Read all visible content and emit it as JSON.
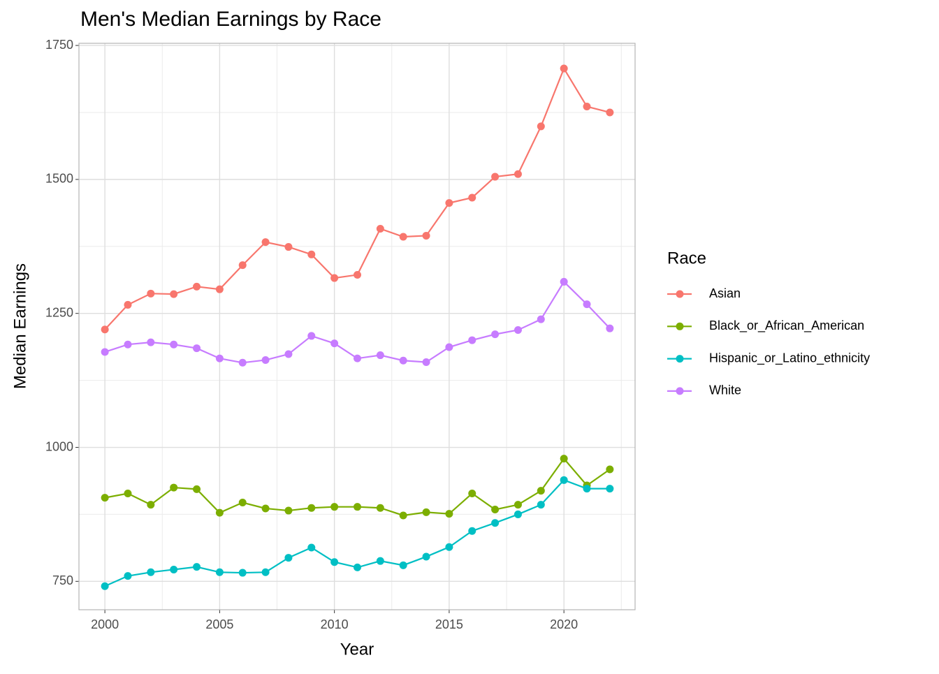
{
  "chart_data": {
    "type": "line",
    "title": "Men's Median Earnings by Race",
    "x_label": "Year",
    "y_label": "Median Earnings",
    "legend_title": "Race",
    "legend_position": "right",
    "x": [
      2000,
      2001,
      2002,
      2003,
      2004,
      2005,
      2006,
      2007,
      2008,
      2009,
      2010,
      2011,
      2012,
      2013,
      2014,
      2015,
      2016,
      2017,
      2018,
      2019,
      2020,
      2021,
      2022
    ],
    "xlim": [
      1998.87,
      2023.1
    ],
    "xticks": [
      2000,
      2005,
      2010,
      2015,
      2020
    ],
    "x_minor_ticks": [
      2002.5,
      2007.5,
      2012.5,
      2017.5,
      2022.5
    ],
    "ylim": [
      697,
      1754
    ],
    "yticks": [
      750,
      1000,
      1250,
      1500,
      1750
    ],
    "y_minor_ticks": [
      875,
      1125,
      1375,
      1625
    ],
    "grid": true,
    "series": [
      {
        "name": "Asian",
        "color": "#F8766D",
        "values": [
          1220,
          1266,
          1287,
          1286,
          1300,
          1295,
          1340,
          1383,
          1374,
          1360,
          1316,
          1322,
          1408,
          1393,
          1395,
          1456,
          1466,
          1505,
          1510,
          1599,
          1707,
          1636,
          1625
        ]
      },
      {
        "name": "Black_or_African_American",
        "color": "#7CAE00",
        "values": [
          906,
          914,
          893,
          925,
          922,
          878,
          897,
          886,
          882,
          887,
          889,
          889,
          887,
          873,
          879,
          876,
          914,
          884,
          893,
          919,
          979,
          929,
          959
        ]
      },
      {
        "name": "Hispanic_or_Latino_ethnicity",
        "color": "#00BFC4",
        "values": [
          741,
          760,
          767,
          772,
          777,
          767,
          766,
          767,
          794,
          813,
          786,
          776,
          788,
          780,
          796,
          814,
          844,
          859,
          875,
          893,
          939,
          923,
          923
        ]
      },
      {
        "name": "White",
        "color": "#C77CFF",
        "values": [
          1178,
          1192,
          1196,
          1192,
          1185,
          1166,
          1158,
          1163,
          1174,
          1208,
          1194,
          1166,
          1172,
          1162,
          1159,
          1187,
          1200,
          1211,
          1219,
          1239,
          1309,
          1267,
          1222
        ]
      }
    ]
  }
}
